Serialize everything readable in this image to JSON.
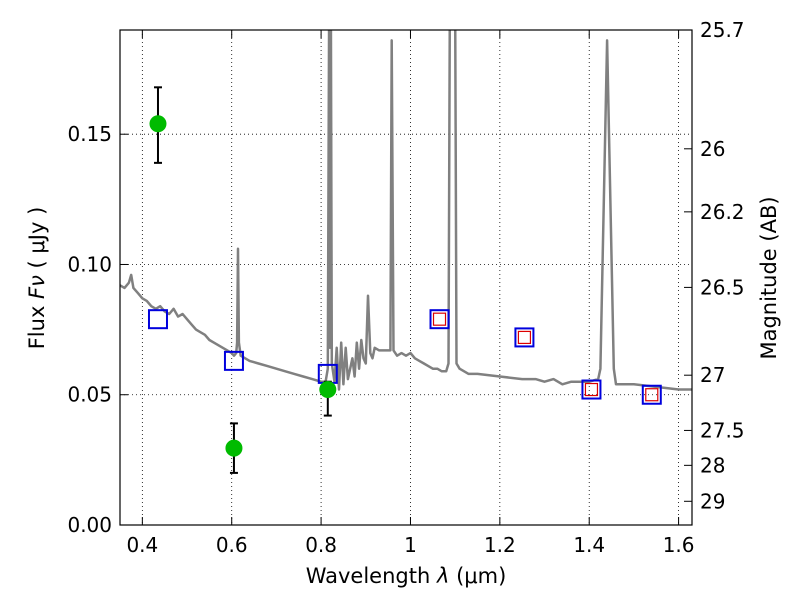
{
  "chart_data": {
    "type": "scatter",
    "xlabel_prefix": "Wavelength",
    "xlabel_symbol": "λ",
    "xlabel_unit": "(μm)",
    "ylabel_prefix": "Flux",
    "ylabel_symbol": "Fν",
    "ylabel_unit": "( μJy )",
    "y2label": "Magnitude (AB)",
    "xlim": [
      0.35,
      1.63
    ],
    "ylim": [
      0.0,
      0.19
    ],
    "grid": true,
    "x_ticks": [
      0.4,
      0.6,
      0.8,
      1.0,
      1.2,
      1.4,
      1.6
    ],
    "x_tick_labels": [
      "0.4",
      "0.6",
      "0.8",
      "1",
      "1.2",
      "1.4",
      "1.6"
    ],
    "y_ticks": [
      0.0,
      0.05,
      0.1,
      0.15
    ],
    "y_tick_labels": [
      "0.00",
      "0.05",
      "0.10",
      "0.15"
    ],
    "y2_ticks": [
      {
        "label": "25.7",
        "flux": 0.19
      },
      {
        "label": "26",
        "flux": 0.1444
      },
      {
        "label": "26.2",
        "flux": 0.1202
      },
      {
        "label": "26.5",
        "flux": 0.0912
      },
      {
        "label": "27",
        "flux": 0.0575
      },
      {
        "label": "27.5",
        "flux": 0.0363
      },
      {
        "label": "28",
        "flux": 0.0229
      },
      {
        "label": "29",
        "flux": 0.0091
      }
    ],
    "colors": {
      "sed": "#808080",
      "observed": "#00bb00",
      "model_box": "#0000dd",
      "model_inner": "#dd0000",
      "errorbar": "#000000"
    },
    "series": [
      {
        "kind": "line",
        "points": [
          [
            0.35,
            0.092
          ],
          [
            0.36,
            0.091
          ],
          [
            0.37,
            0.093
          ],
          [
            0.375,
            0.096
          ],
          [
            0.38,
            0.091
          ],
          [
            0.39,
            0.089
          ],
          [
            0.4,
            0.087
          ],
          [
            0.41,
            0.086
          ],
          [
            0.42,
            0.084
          ],
          [
            0.43,
            0.083
          ],
          [
            0.44,
            0.084
          ],
          [
            0.45,
            0.082
          ],
          [
            0.46,
            0.081
          ],
          [
            0.47,
            0.083
          ],
          [
            0.48,
            0.08
          ],
          [
            0.49,
            0.081
          ],
          [
            0.5,
            0.079
          ],
          [
            0.51,
            0.077
          ],
          [
            0.52,
            0.075
          ],
          [
            0.53,
            0.074
          ],
          [
            0.54,
            0.073
          ],
          [
            0.55,
            0.071
          ],
          [
            0.56,
            0.07
          ],
          [
            0.57,
            0.069
          ],
          [
            0.58,
            0.068
          ],
          [
            0.59,
            0.067
          ],
          [
            0.6,
            0.066
          ],
          [
            0.605,
            0.065
          ],
          [
            0.61,
            0.066
          ],
          [
            0.612,
            0.07
          ],
          [
            0.614,
            0.106
          ],
          [
            0.616,
            0.07
          ],
          [
            0.62,
            0.065
          ],
          [
            0.64,
            0.063
          ],
          [
            0.66,
            0.062
          ],
          [
            0.68,
            0.061
          ],
          [
            0.7,
            0.06
          ],
          [
            0.72,
            0.059
          ],
          [
            0.74,
            0.058
          ],
          [
            0.76,
            0.057
          ],
          [
            0.78,
            0.056
          ],
          [
            0.8,
            0.055
          ],
          [
            0.81,
            0.055
          ],
          [
            0.815,
            0.06
          ],
          [
            0.818,
            0.196
          ],
          [
            0.82,
            0.068
          ],
          [
            0.822,
            0.196
          ],
          [
            0.824,
            0.062
          ],
          [
            0.83,
            0.055
          ],
          [
            0.835,
            0.068
          ],
          [
            0.84,
            0.052
          ],
          [
            0.845,
            0.07
          ],
          [
            0.85,
            0.054
          ],
          [
            0.855,
            0.068
          ],
          [
            0.86,
            0.056
          ],
          [
            0.87,
            0.064
          ],
          [
            0.875,
            0.057
          ],
          [
            0.88,
            0.07
          ],
          [
            0.885,
            0.06
          ],
          [
            0.89,
            0.071
          ],
          [
            0.895,
            0.064
          ],
          [
            0.9,
            0.062
          ],
          [
            0.905,
            0.088
          ],
          [
            0.91,
            0.066
          ],
          [
            0.915,
            0.064
          ],
          [
            0.92,
            0.068
          ],
          [
            0.93,
            0.067
          ],
          [
            0.94,
            0.067
          ],
          [
            0.955,
            0.067
          ],
          [
            0.958,
            0.186
          ],
          [
            0.962,
            0.067
          ],
          [
            0.97,
            0.065
          ],
          [
            0.98,
            0.066
          ],
          [
            0.99,
            0.065
          ],
          [
            1.0,
            0.066
          ],
          [
            1.01,
            0.064
          ],
          [
            1.02,
            0.063
          ],
          [
            1.03,
            0.062
          ],
          [
            1.04,
            0.061
          ],
          [
            1.05,
            0.06
          ],
          [
            1.06,
            0.06
          ],
          [
            1.07,
            0.059
          ],
          [
            1.08,
            0.059
          ],
          [
            1.085,
            0.062
          ],
          [
            1.088,
            0.196
          ],
          [
            1.1,
            0.196
          ],
          [
            1.103,
            0.062
          ],
          [
            1.11,
            0.06
          ],
          [
            1.13,
            0.058
          ],
          [
            1.15,
            0.058
          ],
          [
            1.2,
            0.057
          ],
          [
            1.25,
            0.056
          ],
          [
            1.28,
            0.056
          ],
          [
            1.3,
            0.055
          ],
          [
            1.32,
            0.056
          ],
          [
            1.34,
            0.054
          ],
          [
            1.36,
            0.055
          ],
          [
            1.38,
            0.055
          ],
          [
            1.4,
            0.055
          ],
          [
            1.42,
            0.056
          ],
          [
            1.425,
            0.06
          ],
          [
            1.44,
            0.186
          ],
          [
            1.455,
            0.06
          ],
          [
            1.46,
            0.054
          ],
          [
            1.5,
            0.054
          ],
          [
            1.55,
            0.053
          ],
          [
            1.6,
            0.052
          ],
          [
            1.63,
            0.052
          ]
        ]
      },
      {
        "kind": "box",
        "points": [
          [
            0.435,
            0.079,
            false
          ],
          [
            0.605,
            0.063,
            false
          ],
          [
            0.815,
            0.058,
            false
          ],
          [
            1.065,
            0.079,
            true
          ],
          [
            1.255,
            0.072,
            true
          ],
          [
            1.405,
            0.052,
            true
          ],
          [
            1.54,
            0.05,
            true
          ]
        ]
      },
      {
        "kind": "errorbar",
        "points": [
          [
            0.435,
            0.154,
            0.139,
            0.168
          ],
          [
            0.605,
            0.0295,
            0.02,
            0.039
          ],
          [
            0.815,
            0.052,
            0.042,
            0.055
          ]
        ]
      }
    ]
  }
}
